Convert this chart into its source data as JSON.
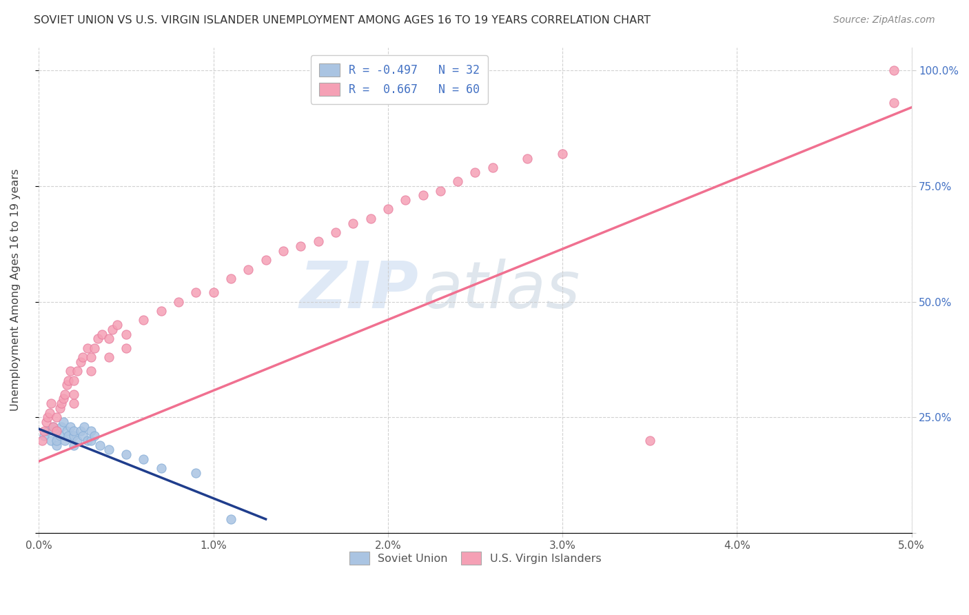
{
  "title": "SOVIET UNION VS U.S. VIRGIN ISLANDER UNEMPLOYMENT AMONG AGES 16 TO 19 YEARS CORRELATION CHART",
  "source": "Source: ZipAtlas.com",
  "ylabel": "Unemployment Among Ages 16 to 19 years",
  "xlim": [
    0.0,
    0.05
  ],
  "ylim": [
    0.0,
    1.05
  ],
  "xticks": [
    0.0,
    0.01,
    0.02,
    0.03,
    0.04,
    0.05
  ],
  "yticks": [
    0.0,
    0.25,
    0.5,
    0.75,
    1.0
  ],
  "ytick_labels": [
    "",
    "25.0%",
    "50.0%",
    "75.0%",
    "100.0%"
  ],
  "xtick_labels": [
    "0.0%",
    "1.0%",
    "2.0%",
    "3.0%",
    "4.0%",
    "5.0%"
  ],
  "color_soviet": "#aac4e2",
  "color_vi": "#f5a0b5",
  "color_soviet_line": "#1f3d8c",
  "color_vi_line": "#f07090",
  "watermark_zip": "ZIP",
  "watermark_atlas": "atlas",
  "background_color": "#ffffff",
  "soviet_x": [
    0.0003,
    0.0005,
    0.0007,
    0.0008,
    0.001,
    0.001,
    0.001,
    0.0012,
    0.0013,
    0.0014,
    0.0015,
    0.0016,
    0.0017,
    0.0018,
    0.002,
    0.002,
    0.002,
    0.0022,
    0.0024,
    0.0025,
    0.0026,
    0.0028,
    0.003,
    0.003,
    0.0032,
    0.0035,
    0.004,
    0.005,
    0.006,
    0.007,
    0.009,
    0.011
  ],
  "soviet_y": [
    0.21,
    0.22,
    0.2,
    0.23,
    0.19,
    0.2,
    0.22,
    0.21,
    0.23,
    0.24,
    0.2,
    0.22,
    0.21,
    0.23,
    0.19,
    0.21,
    0.22,
    0.2,
    0.22,
    0.21,
    0.23,
    0.2,
    0.2,
    0.22,
    0.21,
    0.19,
    0.18,
    0.17,
    0.16,
    0.14,
    0.13,
    0.03
  ],
  "vi_x": [
    0.0002,
    0.0003,
    0.0004,
    0.0005,
    0.0006,
    0.0007,
    0.0008,
    0.001,
    0.001,
    0.0012,
    0.0013,
    0.0014,
    0.0015,
    0.0016,
    0.0017,
    0.0018,
    0.002,
    0.002,
    0.002,
    0.0022,
    0.0024,
    0.0025,
    0.0028,
    0.003,
    0.003,
    0.0032,
    0.0034,
    0.0036,
    0.004,
    0.004,
    0.0042,
    0.0045,
    0.005,
    0.005,
    0.006,
    0.007,
    0.008,
    0.009,
    0.01,
    0.011,
    0.012,
    0.013,
    0.014,
    0.015,
    0.016,
    0.017,
    0.018,
    0.019,
    0.02,
    0.021,
    0.022,
    0.023,
    0.024,
    0.025,
    0.026,
    0.028,
    0.03,
    0.035,
    0.049,
    0.049
  ],
  "vi_y": [
    0.2,
    0.22,
    0.24,
    0.25,
    0.26,
    0.28,
    0.23,
    0.22,
    0.25,
    0.27,
    0.28,
    0.29,
    0.3,
    0.32,
    0.33,
    0.35,
    0.28,
    0.3,
    0.33,
    0.35,
    0.37,
    0.38,
    0.4,
    0.35,
    0.38,
    0.4,
    0.42,
    0.43,
    0.38,
    0.42,
    0.44,
    0.45,
    0.4,
    0.43,
    0.46,
    0.48,
    0.5,
    0.52,
    0.52,
    0.55,
    0.57,
    0.59,
    0.61,
    0.62,
    0.63,
    0.65,
    0.67,
    0.68,
    0.7,
    0.72,
    0.73,
    0.74,
    0.76,
    0.78,
    0.79,
    0.81,
    0.82,
    0.2,
    1.0,
    0.93
  ],
  "soviet_line_x": [
    0.0,
    0.013
  ],
  "soviet_line_y": [
    0.225,
    0.03
  ],
  "vi_line_x": [
    0.0,
    0.05
  ],
  "vi_line_y": [
    0.155,
    0.92
  ]
}
